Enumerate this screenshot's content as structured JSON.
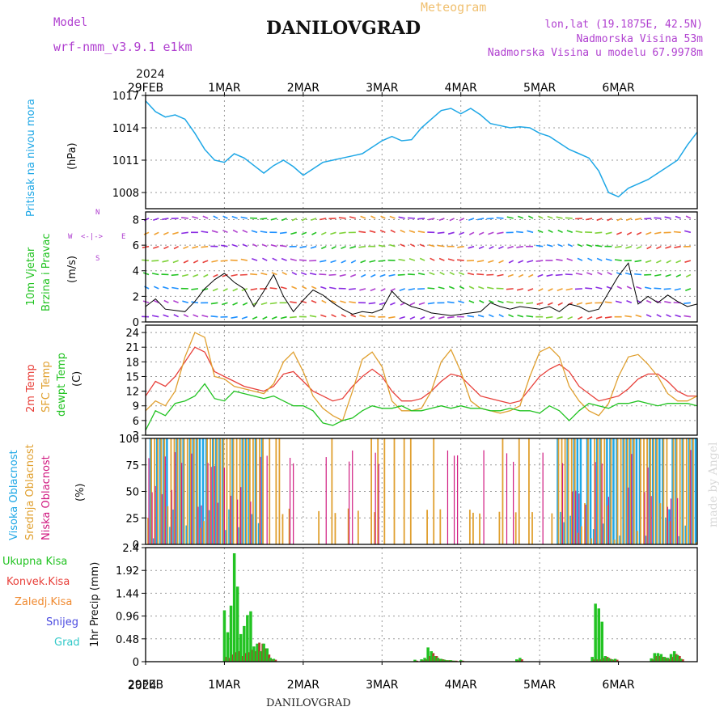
{
  "header": {
    "model_label": "Model",
    "model_name": "wrf-nmm_v3.9.1 e1km",
    "station": "DANILOVGRAD",
    "subtitle": "Meteogram",
    "lonlat": "lon,lat (19.1875E, 42.5N)",
    "elevation": "Nadmorska Visina 53m",
    "model_elevation": "Nadmorska Visina u modelu 67.9978m",
    "watermark": "made by Angel",
    "footer_station": "DANILOVGRAD",
    "year_top": "2024",
    "year_bottom": "2024"
  },
  "colors": {
    "pressure": "#1ea7e6",
    "wind_axis": "#22c322",
    "wind_rose": "#b040d0",
    "temp2m": "#e8403a",
    "sfc": "#e0a030",
    "dewpt": "#22c322",
    "high_cloud": "#1ea7e6",
    "mid_cloud": "#e0a030",
    "low_cloud": "#d01a80",
    "precip_total": "#22c322",
    "precip_conv": "#e8403a",
    "precip_froz": "#f08a30",
    "precip_snow": "#4a4ae0",
    "precip_grad": "#30c8c8",
    "grid": "#999999"
  },
  "time_axis": [
    "29FEB",
    "1MAR",
    "2MAR",
    "3MAR",
    "4MAR",
    "5MAR",
    "6MAR"
  ],
  "panels": {
    "pressure": {
      "label": "Pritisak na nivou mora",
      "unit": "(hPa)"
    },
    "wind": {
      "label1": "10m Vjetar",
      "label2": "Brzina i Pravac",
      "unit": "(m/s)",
      "rose_n": "N",
      "rose_s": "S",
      "rose_w": "W",
      "rose_e": "E",
      "rose_arrows": "<-|->"
    },
    "temp": {
      "label1": "2m Temp",
      "label2": "SFC Temp",
      "label3": "dewpt Temp",
      "unit": "(C)"
    },
    "cloud": {
      "label1": "Visoka Oblacnost",
      "label2": "Srednja Oblacnost",
      "label3": "Niska Oblacnost",
      "unit": "(%)"
    },
    "precip": {
      "unit": "1hr Precip (mm)",
      "legend": [
        "Ukupna Kisa",
        "Konvek.Kisa",
        "Zaledj.Kisa",
        "Snijeg",
        "Grad"
      ]
    }
  },
  "chart_data": [
    {
      "type": "line",
      "ylim": [
        1006.5,
        1017
      ],
      "yticks": [
        "1008",
        "1011",
        "1014",
        "1017"
      ],
      "x": [
        0,
        3,
        6,
        9,
        12,
        15,
        18,
        21,
        24,
        27,
        30,
        33,
        36,
        39,
        42,
        45,
        48,
        51,
        54,
        57,
        60,
        63,
        66,
        69,
        72,
        75,
        78,
        81,
        84,
        87,
        90,
        93,
        96,
        99,
        102,
        105,
        108,
        111,
        114,
        117,
        120,
        123,
        126,
        129,
        132,
        135,
        138,
        141,
        144,
        147,
        150,
        153,
        156,
        159,
        162,
        165,
        168
      ],
      "series": [
        {
          "values": [
            1016.5,
            1015.5,
            1015,
            1015.2,
            1014.8,
            1013.5,
            1012,
            1011,
            1010.8,
            1011.6,
            1011.2,
            1010.5,
            1009.8,
            1010.5,
            1011,
            1010.4,
            1009.6,
            1010.2,
            1010.8,
            1011,
            1011.2,
            1011.4,
            1011.6,
            1012.2,
            1012.8,
            1013.2,
            1012.8,
            1012.9,
            1014,
            1014.8,
            1015.6,
            1015.8,
            1015.3,
            1015.8,
            1015.2,
            1014.4,
            1014.2,
            1014,
            1014.1,
            1014,
            1013.5,
            1013.2,
            1012.6,
            1012,
            1011.6,
            1011.2,
            1010,
            1008,
            1007.6,
            1008.4,
            1008.8,
            1009.2,
            1009.8,
            1010.4,
            1011,
            1012.4,
            1013.6
          ]
        }
      ]
    },
    {
      "type": "line",
      "ylim": [
        0,
        8.6
      ],
      "yticks": [
        "0",
        "2",
        "4",
        "6",
        "8"
      ],
      "x": [
        0,
        3,
        6,
        9,
        12,
        15,
        18,
        21,
        24,
        27,
        30,
        33,
        36,
        39,
        42,
        45,
        48,
        51,
        54,
        57,
        60,
        63,
        66,
        69,
        72,
        75,
        78,
        81,
        84,
        87,
        90,
        93,
        96,
        99,
        102,
        105,
        108,
        111,
        114,
        117,
        120,
        123,
        126,
        129,
        132,
        135,
        138,
        141,
        144,
        147,
        150,
        153,
        156,
        159,
        162,
        165,
        168
      ],
      "series": [
        {
          "values": [
            1.2,
            1.8,
            1,
            0.9,
            0.8,
            1.6,
            2.6,
            3.3,
            3.8,
            3.1,
            2.6,
            1.2,
            2.4,
            3.7,
            2,
            0.8,
            1.7,
            2.5,
            2.1,
            1.5,
            1,
            0.6,
            0.8,
            0.7,
            1,
            2.4,
            1.6,
            1.2,
            1,
            0.7,
            0.6,
            0.5,
            0.6,
            0.7,
            0.8,
            1.5,
            1.2,
            1,
            1.2,
            1.1,
            1,
            1.2,
            0.8,
            1.4,
            1.2,
            0.8,
            1,
            2.3,
            3.6,
            4.6,
            1.4,
            2,
            1.5,
            2.1,
            1.6,
            1.2,
            1.4
          ]
        }
      ]
    },
    {
      "type": "line",
      "ylim": [
        3,
        25.5
      ],
      "yticks": [
        "3",
        "6",
        "9",
        "12",
        "15",
        "18",
        "21",
        "24"
      ],
      "x": [
        0,
        3,
        6,
        9,
        12,
        15,
        18,
        21,
        24,
        27,
        30,
        33,
        36,
        39,
        42,
        45,
        48,
        51,
        54,
        57,
        60,
        63,
        66,
        69,
        72,
        75,
        78,
        81,
        84,
        87,
        90,
        93,
        96,
        99,
        102,
        105,
        108,
        111,
        114,
        117,
        120,
        123,
        126,
        129,
        132,
        135,
        138,
        141,
        144,
        147,
        150,
        153,
        156,
        159,
        162,
        165,
        168
      ],
      "series": [
        {
          "values": [
            11,
            14,
            13,
            15,
            18,
            21,
            20,
            16,
            15,
            14,
            13,
            12.5,
            12,
            13,
            15.5,
            16,
            14,
            12,
            11,
            10,
            10.5,
            13,
            15,
            16.5,
            15,
            12,
            10,
            10,
            10.5,
            12,
            14,
            15.5,
            15,
            13,
            11,
            10.5,
            10,
            9.5,
            10,
            12.5,
            15,
            16.5,
            17.5,
            16,
            13,
            11.5,
            10,
            10.5,
            11,
            12.5,
            14.5,
            15.5,
            15.5,
            14,
            12,
            11,
            11
          ]
        },
        {
          "values": [
            8,
            10,
            9,
            12,
            19,
            24,
            23,
            15,
            14.5,
            13,
            12.5,
            12,
            11.5,
            13.5,
            18,
            20,
            16,
            11,
            8.5,
            7,
            6,
            12,
            18.5,
            20,
            17,
            10,
            8,
            8,
            8.5,
            12,
            18,
            20.5,
            16,
            10,
            8.5,
            8,
            7.5,
            8,
            9,
            15,
            20,
            21,
            19,
            13,
            10,
            8,
            7,
            9.5,
            15,
            19,
            19.5,
            17.5,
            15,
            11.5,
            10,
            10,
            11
          ]
        },
        {
          "values": [
            4,
            8,
            7,
            9.5,
            10,
            11,
            13.5,
            10.5,
            10,
            12,
            11.5,
            11,
            10.5,
            11,
            10,
            9,
            9,
            8,
            5.5,
            5,
            6,
            6.5,
            8,
            9,
            8.5,
            8.5,
            9,
            8,
            8,
            8.5,
            9,
            8.5,
            9,
            8.5,
            8.5,
            8,
            8,
            8.5,
            8,
            8,
            7.5,
            9,
            8,
            6,
            8,
            9.5,
            9,
            8.5,
            9.5,
            9.5,
            10,
            9.5,
            9,
            9.5,
            9.5,
            9.5,
            9
          ]
        }
      ]
    },
    {
      "type": "bar",
      "ylim": [
        0,
        100
      ],
      "yticks": [
        "0",
        "25",
        "50",
        "75",
        "100"
      ],
      "series": [
        {
          "name": "Visoka Oblacnost"
        },
        {
          "name": "Srednja Oblacnost"
        },
        {
          "name": "Niska Oblacnost"
        }
      ]
    },
    {
      "type": "bar",
      "ylim": [
        0,
        2.4
      ],
      "yticks": [
        "0",
        "0.48",
        "0.96",
        "1.44",
        "1.92",
        "2.4"
      ],
      "x": [
        24,
        25,
        26,
        27,
        28,
        29,
        30,
        31,
        32,
        33,
        34,
        35,
        36,
        37,
        38,
        39,
        82,
        84,
        85,
        86,
        87,
        88,
        89,
        90,
        91,
        92,
        93,
        94,
        96,
        113,
        114,
        136,
        137,
        138,
        139,
        140,
        141,
        142,
        143,
        154,
        155,
        156,
        157,
        158,
        159,
        160,
        161,
        162,
        163
      ],
      "series": [
        {
          "name": "Ukupna Kisa",
          "values": [
            1.08,
            0.62,
            1.18,
            2.28,
            1.58,
            0.58,
            0.75,
            0.98,
            1.06,
            0.32,
            0.38,
            0.22,
            0.38,
            0.28,
            0.08,
            0.06,
            0.04,
            0.05,
            0.08,
            0.3,
            0.22,
            0.12,
            0.08,
            0.06,
            0.04,
            0.03,
            0.03,
            0.02,
            0.03,
            0.05,
            0.08,
            0.1,
            1.22,
            1.12,
            0.84,
            0.12,
            0.08,
            0.05,
            0.06,
            0.07,
            0.18,
            0.18,
            0.16,
            0.1,
            0.08,
            0.16,
            0.22,
            0.14,
            0.06
          ]
        },
        {
          "name": "Konvek.Kisa",
          "values": [
            0.1,
            0.08,
            0.15,
            0.2,
            0.22,
            0.12,
            0.18,
            0.2,
            0.25,
            0.22,
            0.4,
            0.38,
            0.28,
            0.15,
            0.05,
            0.04,
            0.02,
            0.03,
            0.05,
            0.12,
            0.18,
            0.12,
            0.06,
            0.05,
            0.03,
            0.03,
            0.02,
            0.02,
            0.02,
            0.03,
            0.05,
            0.05,
            0.05,
            0.05,
            0.08,
            0.1,
            0.06,
            0.04,
            0.04,
            0.05,
            0.12,
            0.12,
            0.1,
            0.08,
            0.06,
            0.1,
            0.16,
            0.12,
            0.05
          ]
        }
      ]
    }
  ]
}
